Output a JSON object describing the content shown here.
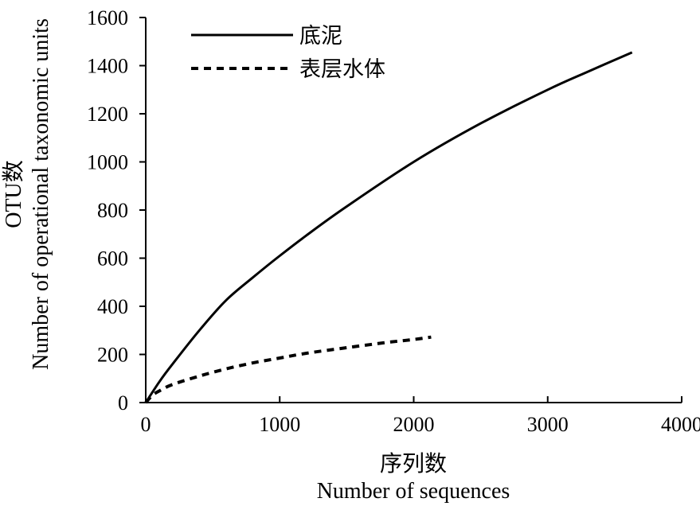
{
  "chart_data": {
    "type": "line",
    "title": "",
    "xlabel": "序列数",
    "xlabel_en": "Number of sequences",
    "ylabel": "OTU数",
    "ylabel_en": "Number of operational taxonomic units",
    "xlim": [
      0,
      4000
    ],
    "ylim": [
      0,
      1600
    ],
    "x_ticks": [
      "0",
      "1000",
      "2000",
      "3000",
      "4000"
    ],
    "y_ticks": [
      "0",
      "200",
      "400",
      "600",
      "800",
      "1000",
      "1200",
      "1400",
      "1600"
    ],
    "grid": false,
    "legend_position": "top-left",
    "series": [
      {
        "name": "底泥",
        "style": "solid",
        "color": "#000000",
        "points": [
          [
            0,
            0
          ],
          [
            100,
            85
          ],
          [
            200,
            160
          ],
          [
            400,
            300
          ],
          [
            600,
            425
          ],
          [
            800,
            520
          ],
          [
            1000,
            610
          ],
          [
            1200,
            695
          ],
          [
            1500,
            815
          ],
          [
            2000,
            1000
          ],
          [
            2500,
            1160
          ],
          [
            3000,
            1300
          ],
          [
            3300,
            1375
          ],
          [
            3630,
            1455
          ]
        ]
      },
      {
        "name": "表层水体",
        "style": "dashed",
        "color": "#000000",
        "points": [
          [
            0,
            0
          ],
          [
            50,
            30
          ],
          [
            100,
            48
          ],
          [
            200,
            75
          ],
          [
            400,
            110
          ],
          [
            600,
            140
          ],
          [
            800,
            165
          ],
          [
            1000,
            185
          ],
          [
            1200,
            205
          ],
          [
            1500,
            228
          ],
          [
            1800,
            250
          ],
          [
            2000,
            262
          ],
          [
            2130,
            272
          ]
        ]
      }
    ]
  }
}
